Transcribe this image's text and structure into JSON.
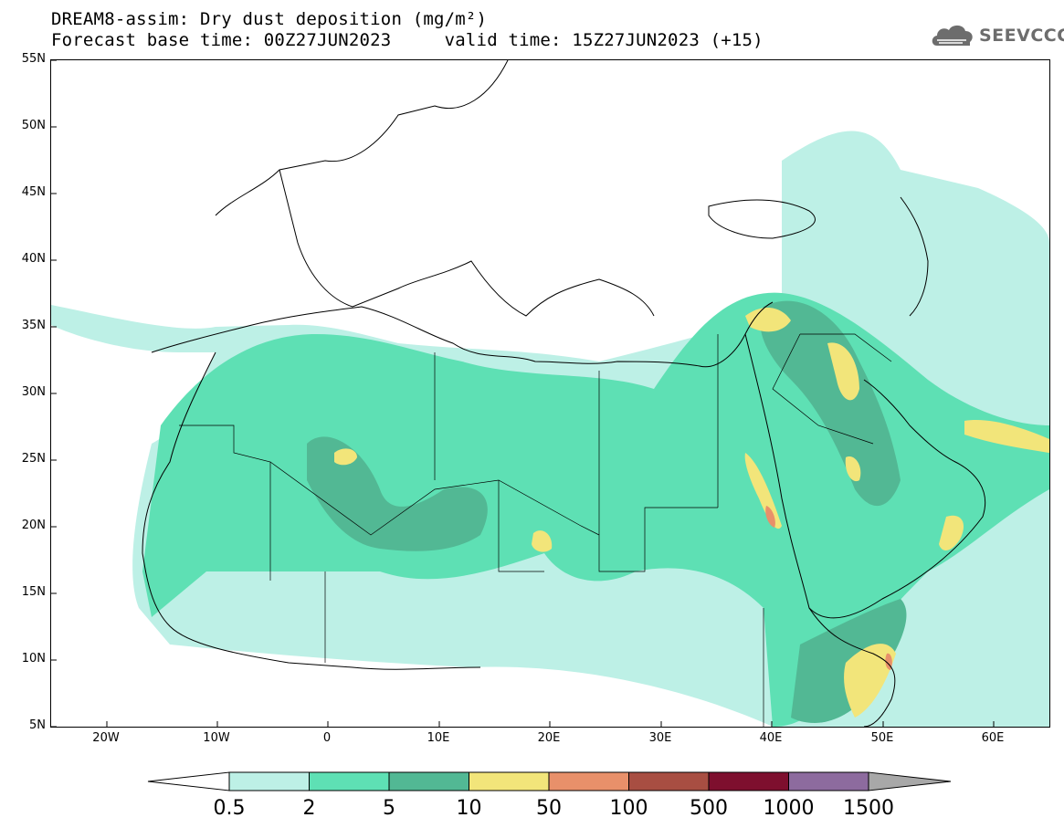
{
  "title": {
    "line1": "DREAM8-assim: Dry dust deposition (mg/m²)",
    "line2": "Forecast base time: 00Z27JUN2023     valid time: 15Z27JUN2023 (+15)"
  },
  "logo": {
    "text": "SEEVCCC",
    "icon": "cloud-logo-icon"
  },
  "map": {
    "lat_labels": [
      "55N",
      "50N",
      "45N",
      "40N",
      "35N",
      "30N",
      "25N",
      "20N",
      "15N",
      "10N",
      "5N"
    ],
    "lon_labels": [
      "20W",
      "10W",
      "0",
      "10E",
      "20E",
      "30E",
      "40E",
      "50E",
      "60E"
    ],
    "extent": {
      "lon": [
        -25,
        65
      ],
      "lat": [
        5,
        55
      ]
    }
  },
  "legend": {
    "labels": [
      "0.5",
      "2",
      "5",
      "10",
      "50",
      "100",
      "500",
      "1000",
      "1500"
    ],
    "colors": [
      "#bdf0e6",
      "#5ee0b4",
      "#52b894",
      "#f2e57a",
      "#e8906a",
      "#a84e42",
      "#7e0f2e",
      "#8d6b9e"
    ],
    "under_color": "#ffffff",
    "over_color": "#a8a8a8"
  }
}
